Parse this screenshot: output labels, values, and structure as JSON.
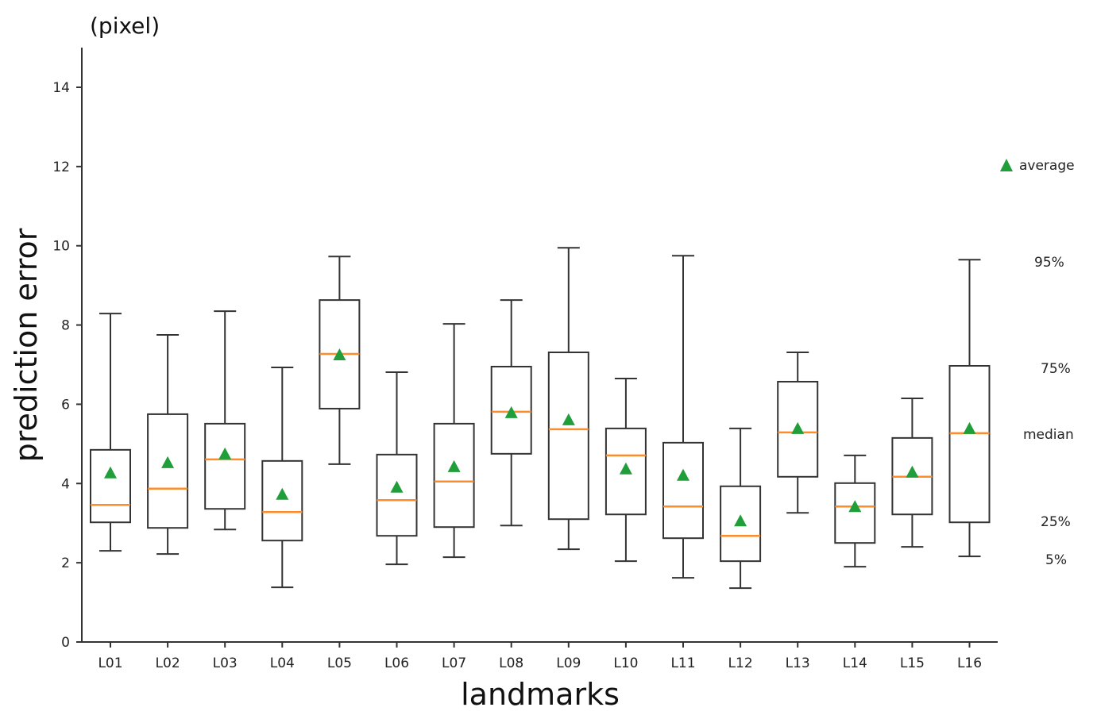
{
  "chart_data": {
    "type": "box",
    "unit_label": "(pixel)",
    "xlabel": "landmarks",
    "ylabel": "prediction error",
    "ylim": [
      0,
      15
    ],
    "yticks": [
      0,
      2,
      4,
      6,
      8,
      10,
      12,
      14
    ],
    "grid": false,
    "categories": [
      "L01",
      "L02",
      "L03",
      "L04",
      "L05",
      "L06",
      "L07",
      "L08",
      "L09",
      "L10",
      "L11",
      "L12",
      "L13",
      "L14",
      "L15",
      "L16"
    ],
    "whisker_low_5pct": [
      2.3,
      2.22,
      2.84,
      1.38,
      4.49,
      1.96,
      2.14,
      2.94,
      2.34,
      2.04,
      1.62,
      1.36,
      3.26,
      1.9,
      2.4,
      2.16
    ],
    "q1_25pct": [
      3.02,
      2.88,
      3.36,
      2.56,
      5.89,
      2.68,
      2.9,
      4.75,
      3.1,
      3.22,
      2.62,
      2.04,
      4.17,
      2.5,
      3.22,
      3.02
    ],
    "median": [
      3.46,
      3.87,
      4.61,
      3.28,
      7.27,
      3.58,
      4.05,
      5.81,
      5.37,
      4.71,
      3.42,
      2.68,
      5.29,
      3.42,
      4.17,
      5.27
    ],
    "q3_75pct": [
      4.85,
      5.75,
      5.51,
      4.57,
      8.63,
      4.73,
      5.51,
      6.95,
      7.31,
      5.39,
      5.03,
      3.93,
      6.57,
      4.01,
      5.15,
      6.97
    ],
    "whisker_high_95pct": [
      8.29,
      7.75,
      8.35,
      6.93,
      9.73,
      6.81,
      8.03,
      8.63,
      9.95,
      6.65,
      9.75,
      5.39,
      7.31,
      4.71,
      6.15,
      9.65
    ],
    "average": [
      4.27,
      4.53,
      4.75,
      3.73,
      7.25,
      3.91,
      4.43,
      5.79,
      5.61,
      4.37,
      4.21,
      3.06,
      5.39,
      3.42,
      4.29,
      5.39
    ],
    "legend": {
      "placement": "right",
      "average_label": "average",
      "p95_label": "95%",
      "p75_label": "75%",
      "median_label": "median",
      "p25_label": "25%",
      "p5_label": "5%"
    },
    "colors": {
      "box": "#333333",
      "median": "#ff8c2a",
      "average": "#1f9e3a"
    }
  }
}
